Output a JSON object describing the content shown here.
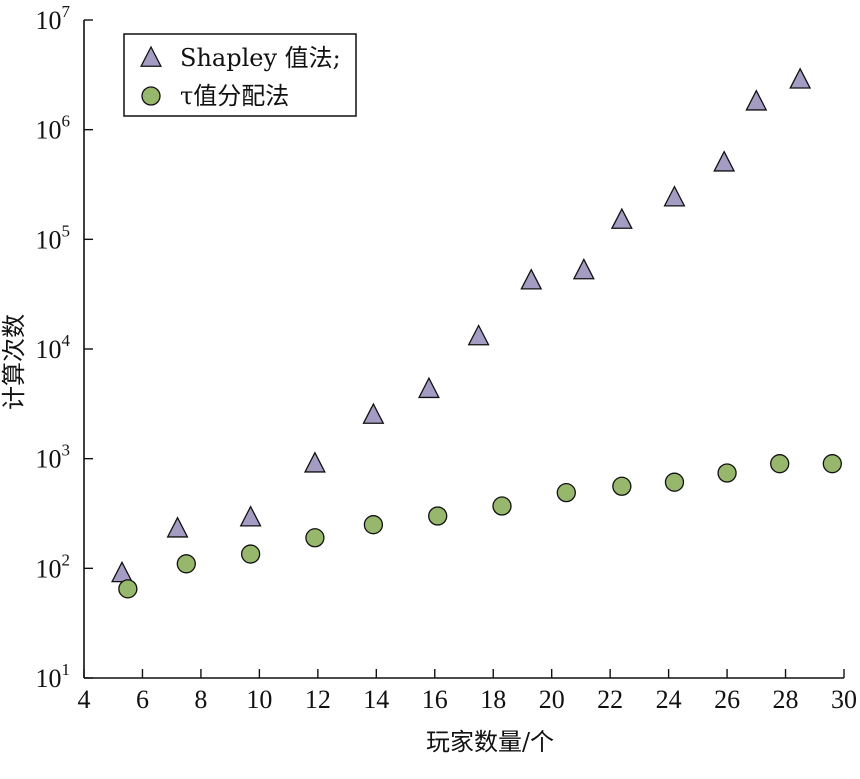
{
  "chart_data": {
    "type": "scatter",
    "title": "",
    "xlabel": "玩家数量/个",
    "ylabel": "计算次数",
    "xlim": [
      4,
      30
    ],
    "ylim": [
      10,
      10000000
    ],
    "yscale": "log",
    "grid": false,
    "legend_position": "top-left",
    "x_ticks": [
      "4",
      "6",
      "8",
      "10",
      "12",
      "14",
      "16",
      "18",
      "20",
      "22",
      "24",
      "26",
      "28",
      "30"
    ],
    "y_ticks": [
      {
        "base": "10",
        "exp": "1"
      },
      {
        "base": "10",
        "exp": "2"
      },
      {
        "base": "10",
        "exp": "3"
      },
      {
        "base": "10",
        "exp": "4"
      },
      {
        "base": "10",
        "exp": "5"
      },
      {
        "base": "10",
        "exp": "6"
      },
      {
        "base": "10",
        "exp": "7"
      }
    ],
    "series": [
      {
        "name": "Shapley 值法;",
        "marker": "triangle",
        "color": "#a59cc4",
        "points": [
          [
            5.3,
            90
          ],
          [
            7.2,
            230
          ],
          [
            9.7,
            290
          ],
          [
            11.9,
            900
          ],
          [
            13.9,
            2500
          ],
          [
            15.8,
            4300
          ],
          [
            17.5,
            13000
          ],
          [
            19.3,
            42000
          ],
          [
            21.1,
            52000
          ],
          [
            22.4,
            150000
          ],
          [
            24.2,
            240000
          ],
          [
            25.9,
            500000
          ],
          [
            27.0,
            1800000
          ],
          [
            28.5,
            2850000
          ]
        ]
      },
      {
        "name": "τ值分配法",
        "marker": "circle",
        "color": "#97b86c",
        "points": [
          [
            5.5,
            65
          ],
          [
            7.5,
            110
          ],
          [
            9.7,
            135
          ],
          [
            11.9,
            190
          ],
          [
            13.9,
            250
          ],
          [
            16.1,
            300
          ],
          [
            18.3,
            370
          ],
          [
            20.5,
            490
          ],
          [
            22.4,
            560
          ],
          [
            24.2,
            610
          ],
          [
            26.0,
            740
          ],
          [
            27.8,
            900
          ],
          [
            29.6,
            900
          ]
        ]
      }
    ]
  }
}
